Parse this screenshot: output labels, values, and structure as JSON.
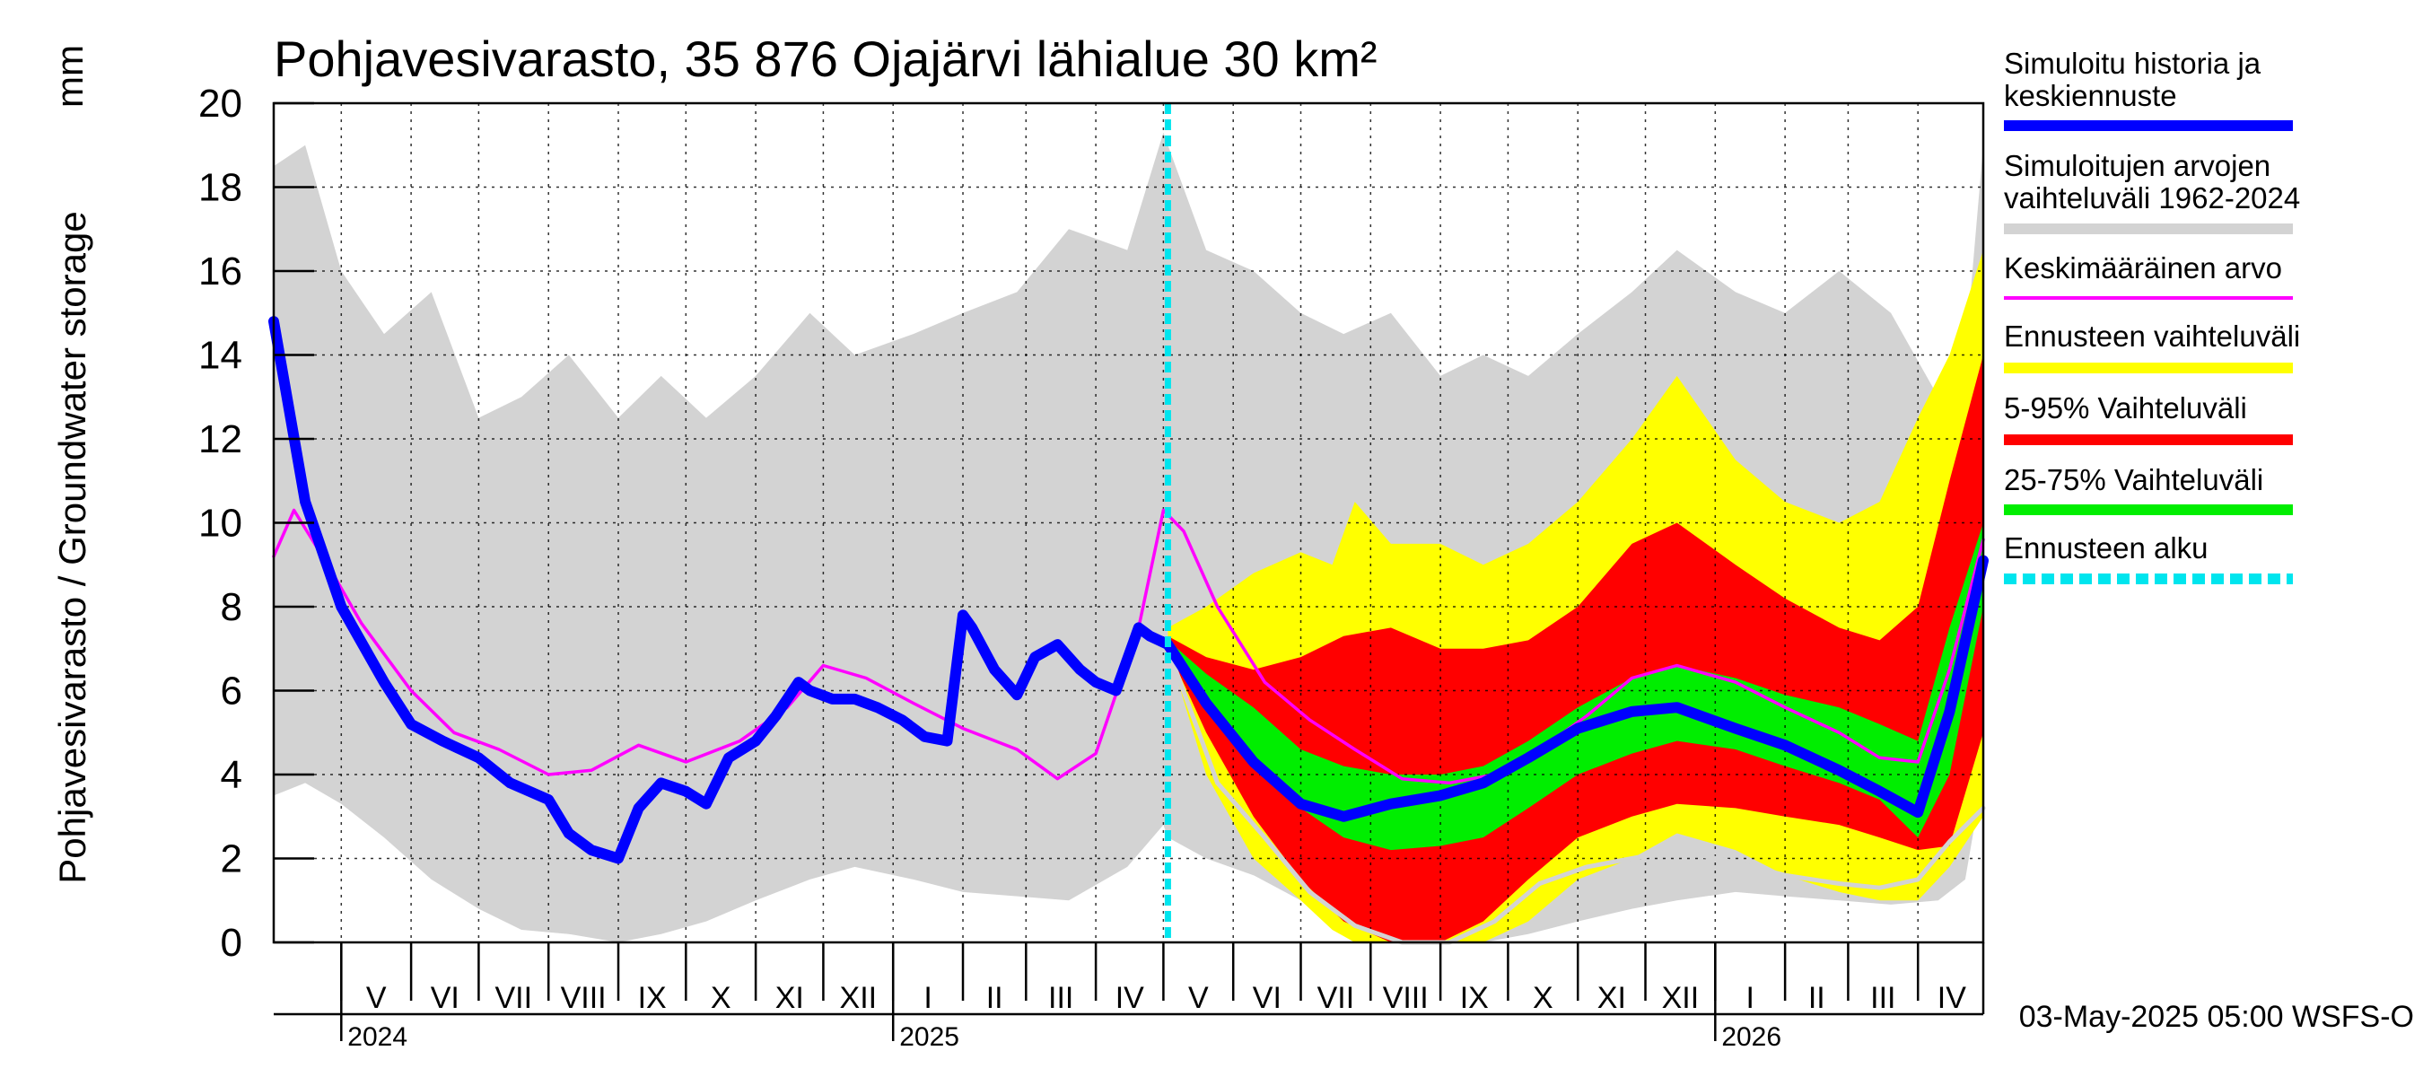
{
  "chart_data": {
    "type": "area",
    "title": "Pohjavesivarasto, 35 876 Ojajärvi lähialue 30 km²",
    "ylabel": "Pohjavesivarasto / Groundwater storage",
    "yunit": "mm",
    "ylim": [
      0,
      20
    ],
    "yticks": [
      0,
      2,
      4,
      6,
      8,
      10,
      12,
      14,
      16,
      18,
      20
    ],
    "xlim": [
      "2024-04-01",
      "2026-04-30"
    ],
    "months": [
      {
        "label": "V",
        "start": "2024-05-01",
        "end": "2024-06-01"
      },
      {
        "label": "VI",
        "start": "2024-06-01",
        "end": "2024-07-01"
      },
      {
        "label": "VII",
        "start": "2024-07-01",
        "end": "2024-08-01"
      },
      {
        "label": "VIII",
        "start": "2024-08-01",
        "end": "2024-09-01"
      },
      {
        "label": "IX",
        "start": "2024-09-01",
        "end": "2024-10-01"
      },
      {
        "label": "X",
        "start": "2024-10-01",
        "end": "2024-11-01"
      },
      {
        "label": "XI",
        "start": "2024-11-01",
        "end": "2024-12-01"
      },
      {
        "label": "XII",
        "start": "2024-12-01",
        "end": "2025-01-01"
      },
      {
        "label": "I",
        "start": "2025-01-01",
        "end": "2025-02-01"
      },
      {
        "label": "II",
        "start": "2025-02-01",
        "end": "2025-03-01"
      },
      {
        "label": "III",
        "start": "2025-03-01",
        "end": "2025-04-01"
      },
      {
        "label": "IV",
        "start": "2025-04-01",
        "end": "2025-05-01"
      },
      {
        "label": "V",
        "start": "2025-05-01",
        "end": "2025-06-01"
      },
      {
        "label": "VI",
        "start": "2025-06-01",
        "end": "2025-07-01"
      },
      {
        "label": "VII",
        "start": "2025-07-01",
        "end": "2025-08-01"
      },
      {
        "label": "VIII",
        "start": "2025-08-01",
        "end": "2025-09-01"
      },
      {
        "label": "IX",
        "start": "2025-09-01",
        "end": "2025-10-01"
      },
      {
        "label": "X",
        "start": "2025-10-01",
        "end": "2025-11-01"
      },
      {
        "label": "XI",
        "start": "2025-11-01",
        "end": "2025-12-01"
      },
      {
        "label": "XII",
        "start": "2025-12-01",
        "end": "2026-01-01"
      },
      {
        "label": "I",
        "start": "2026-01-01",
        "end": "2026-02-01"
      },
      {
        "label": "II",
        "start": "2026-02-01",
        "end": "2026-03-01"
      },
      {
        "label": "III",
        "start": "2026-03-01",
        "end": "2026-04-01"
      },
      {
        "label": "IV",
        "start": "2026-04-01",
        "end": "2026-05-01"
      }
    ],
    "years": [
      {
        "label": "2024",
        "date": "2024-05-01"
      },
      {
        "label": "2025",
        "date": "2025-01-01"
      },
      {
        "label": "2026",
        "date": "2026-01-01"
      }
    ],
    "forecast_start": "2025-05-03",
    "series": [
      {
        "name": "Simuloitujen arvojen vaihteluväli 1962-2024",
        "kind": "band",
        "color": "#d3d3d3",
        "x": [
          "2024-04-01",
          "2024-04-15",
          "2024-05-01",
          "2024-05-20",
          "2024-06-10",
          "2024-07-01",
          "2024-07-20",
          "2024-08-10",
          "2024-09-01",
          "2024-09-20",
          "2024-10-10",
          "2024-11-01",
          "2024-11-25",
          "2024-12-15",
          "2025-01-10",
          "2025-02-01",
          "2025-02-25",
          "2025-03-20",
          "2025-04-15",
          "2025-05-01",
          "2025-05-03",
          "2025-05-20",
          "2025-06-10",
          "2025-07-01",
          "2025-07-20",
          "2025-08-10",
          "2025-09-01",
          "2025-09-20",
          "2025-10-10",
          "2025-11-01",
          "2025-11-25",
          "2025-12-15",
          "2026-01-10",
          "2026-02-01",
          "2026-02-25",
          "2026-03-20",
          "2026-04-10",
          "2026-04-22",
          "2026-04-30"
        ],
        "upper": [
          18.5,
          19.0,
          16.0,
          14.5,
          15.5,
          12.5,
          13.0,
          14.0,
          12.5,
          13.5,
          12.5,
          13.5,
          15.0,
          14.0,
          14.5,
          15.0,
          15.5,
          17.0,
          16.5,
          19.3,
          19.0,
          16.5,
          16.0,
          15.0,
          14.5,
          15.0,
          13.5,
          14.0,
          13.5,
          14.5,
          15.5,
          16.5,
          15.5,
          15.0,
          16.0,
          15.0,
          13.0,
          14.0,
          19.0
        ],
        "lower": [
          3.5,
          3.8,
          3.3,
          2.5,
          1.5,
          0.8,
          0.3,
          0.2,
          0.0,
          0.2,
          0.5,
          1.0,
          1.5,
          1.8,
          1.5,
          1.2,
          1.1,
          1.0,
          1.8,
          2.8,
          2.5,
          2.0,
          1.6,
          1.0,
          0.5,
          0.2,
          0.0,
          0.0,
          0.2,
          0.5,
          0.8,
          1.0,
          1.2,
          1.1,
          1.0,
          0.9,
          1.0,
          1.5,
          4.0
        ]
      },
      {
        "name": "Ennusteen vaihteluväli",
        "kind": "band",
        "color": "#ffff00",
        "x": [
          "2025-05-03",
          "2025-05-20",
          "2025-06-10",
          "2025-07-01",
          "2025-07-15",
          "2025-07-25",
          "2025-08-10",
          "2025-09-01",
          "2025-09-20",
          "2025-10-10",
          "2025-11-01",
          "2025-11-25",
          "2025-12-15",
          "2026-01-10",
          "2026-02-01",
          "2026-02-25",
          "2026-03-15",
          "2026-04-01",
          "2026-04-15",
          "2026-04-30"
        ],
        "upper": [
          7.5,
          8.0,
          8.8,
          9.3,
          9.0,
          10.5,
          9.5,
          9.5,
          9.0,
          9.5,
          10.5,
          12.0,
          13.5,
          11.5,
          10.5,
          10.0,
          10.5,
          12.5,
          14.0,
          16.5
        ],
        "lower": [
          7.0,
          4.0,
          2.0,
          1.0,
          0.3,
          0.0,
          0.0,
          0.0,
          0.0,
          0.5,
          1.5,
          2.0,
          2.6,
          2.2,
          1.6,
          1.2,
          1.0,
          1.0,
          1.8,
          3.0
        ]
      },
      {
        "name": "5-95% Vaihteluväli",
        "kind": "band",
        "color": "#ff0000",
        "x": [
          "2025-05-03",
          "2025-05-20",
          "2025-06-10",
          "2025-07-01",
          "2025-07-20",
          "2025-08-10",
          "2025-09-01",
          "2025-09-20",
          "2025-10-10",
          "2025-11-01",
          "2025-11-25",
          "2025-12-15",
          "2026-01-10",
          "2026-02-01",
          "2026-02-25",
          "2026-03-15",
          "2026-04-01",
          "2026-04-15",
          "2026-04-30"
        ],
        "upper": [
          7.3,
          6.8,
          6.5,
          6.8,
          7.3,
          7.5,
          7.0,
          7.0,
          7.2,
          8.0,
          9.5,
          10.0,
          9.0,
          8.2,
          7.5,
          7.2,
          8.0,
          11.0,
          14.0
        ],
        "lower": [
          7.0,
          5.0,
          3.0,
          1.5,
          0.5,
          0.0,
          0.0,
          0.5,
          1.5,
          2.5,
          3.0,
          3.3,
          3.2,
          3.0,
          2.8,
          2.5,
          2.2,
          2.3,
          5.0
        ]
      },
      {
        "name": "25-75% Vaihteluväli",
        "kind": "band",
        "color": "#00ee00",
        "x": [
          "2025-05-03",
          "2025-05-20",
          "2025-06-10",
          "2025-07-01",
          "2025-07-20",
          "2025-08-10",
          "2025-09-01",
          "2025-09-20",
          "2025-10-10",
          "2025-11-01",
          "2025-11-25",
          "2025-12-15",
          "2026-01-10",
          "2026-02-01",
          "2026-02-25",
          "2026-03-15",
          "2026-04-01",
          "2026-04-15",
          "2026-04-30"
        ],
        "upper": [
          7.2,
          6.4,
          5.6,
          4.6,
          4.2,
          4.0,
          4.0,
          4.2,
          4.8,
          5.6,
          6.3,
          6.6,
          6.3,
          5.9,
          5.6,
          5.2,
          4.8,
          7.5,
          10.0
        ],
        "lower": [
          7.0,
          5.6,
          4.4,
          3.2,
          2.5,
          2.2,
          2.3,
          2.5,
          3.2,
          4.0,
          4.5,
          4.8,
          4.6,
          4.2,
          3.8,
          3.4,
          2.5,
          4.0,
          8.0
        ]
      },
      {
        "name": "Keskimääräinen arvo",
        "kind": "line",
        "color": "#ff00ff",
        "x": [
          "2024-04-01",
          "2024-04-10",
          "2024-04-25",
          "2024-05-10",
          "2024-06-01",
          "2024-06-20",
          "2024-07-10",
          "2024-08-01",
          "2024-08-20",
          "2024-09-10",
          "2024-10-01",
          "2024-10-25",
          "2024-11-15",
          "2024-12-01",
          "2024-12-20",
          "2025-01-10",
          "2025-02-01",
          "2025-02-25",
          "2025-03-15",
          "2025-04-01",
          "2025-04-20",
          "2025-05-01",
          "2025-05-10",
          "2025-05-25",
          "2025-06-15",
          "2025-07-05",
          "2025-07-25",
          "2025-08-15",
          "2025-09-05",
          "2025-09-25",
          "2025-10-15",
          "2025-11-05",
          "2025-11-25",
          "2025-12-15",
          "2026-01-10",
          "2026-02-01",
          "2026-02-25",
          "2026-03-15",
          "2026-04-01",
          "2026-04-15",
          "2026-04-30"
        ],
        "y": [
          9.2,
          10.3,
          9.0,
          7.6,
          6.0,
          5.0,
          4.6,
          4.0,
          4.1,
          4.7,
          4.3,
          4.8,
          5.6,
          6.6,
          6.3,
          5.7,
          5.1,
          4.6,
          3.9,
          4.5,
          7.5,
          10.3,
          9.8,
          8.0,
          6.2,
          5.3,
          4.6,
          3.9,
          3.8,
          4.0,
          4.6,
          5.4,
          6.3,
          6.6,
          6.2,
          5.6,
          5.0,
          4.4,
          4.3,
          6.5,
          9.6
        ]
      },
      {
        "name": "",
        "kind": "line",
        "color": "#d3d3d3",
        "x": [
          "2025-05-03",
          "2025-05-25",
          "2025-06-15",
          "2025-07-05",
          "2025-07-25",
          "2025-08-15",
          "2025-09-05",
          "2025-09-25",
          "2025-10-15",
          "2025-11-05",
          "2025-11-25",
          "2025-12-15",
          "2026-01-10",
          "2026-02-01",
          "2026-02-25",
          "2026-03-15",
          "2026-04-01",
          "2026-04-15",
          "2026-04-30"
        ],
        "y": [
          7.0,
          3.8,
          2.5,
          1.2,
          0.4,
          0.0,
          0.0,
          0.5,
          1.4,
          1.8,
          2.0,
          2.2,
          1.9,
          1.6,
          1.4,
          1.3,
          1.5,
          2.4,
          3.2
        ]
      },
      {
        "name": "Simuloitu historia ja keskiennuste",
        "kind": "line",
        "color": "#0000ff",
        "x": [
          "2024-04-01",
          "2024-04-15",
          "2024-05-01",
          "2024-05-20",
          "2024-06-01",
          "2024-06-15",
          "2024-07-01",
          "2024-07-15",
          "2024-08-01",
          "2024-08-10",
          "2024-08-20",
          "2024-09-01",
          "2024-09-10",
          "2024-09-20",
          "2024-10-01",
          "2024-10-10",
          "2024-10-20",
          "2024-11-01",
          "2024-11-10",
          "2024-11-20",
          "2024-11-25",
          "2024-12-05",
          "2024-12-15",
          "2024-12-25",
          "2025-01-05",
          "2025-01-15",
          "2025-01-25",
          "2025-02-01",
          "2025-02-05",
          "2025-02-15",
          "2025-02-25",
          "2025-03-05",
          "2025-03-15",
          "2025-03-25",
          "2025-04-01",
          "2025-04-10",
          "2025-04-20",
          "2025-04-25",
          "2025-05-03",
          "2025-05-20",
          "2025-06-10",
          "2025-07-01",
          "2025-07-20",
          "2025-08-10",
          "2025-09-01",
          "2025-09-20",
          "2025-10-10",
          "2025-11-01",
          "2025-11-25",
          "2025-12-15",
          "2026-01-10",
          "2026-02-01",
          "2026-02-25",
          "2026-03-15",
          "2026-04-01",
          "2026-04-15",
          "2026-04-30"
        ],
        "y": [
          14.8,
          10.5,
          8.0,
          6.2,
          5.2,
          4.8,
          4.4,
          3.8,
          3.4,
          2.6,
          2.2,
          2.0,
          3.2,
          3.8,
          3.6,
          3.3,
          4.4,
          4.8,
          5.4,
          6.2,
          6.0,
          5.8,
          5.8,
          5.6,
          5.3,
          4.9,
          4.8,
          7.8,
          7.5,
          6.5,
          5.9,
          6.8,
          7.1,
          6.5,
          6.2,
          6.0,
          7.5,
          7.3,
          7.1,
          5.7,
          4.3,
          3.3,
          3.0,
          3.3,
          3.5,
          3.8,
          4.4,
          5.1,
          5.5,
          5.6,
          5.1,
          4.7,
          4.1,
          3.6,
          3.1,
          5.5,
          9.1
        ]
      }
    ]
  },
  "legend": [
    {
      "label": "Simuloitu historia ja keskiennuste",
      "color": "#0000ff",
      "style": "solid"
    },
    {
      "label": "Simuloitujen arvojen vaihteluväli 1962-2024",
      "color": "#d3d3d3",
      "style": "solid"
    },
    {
      "label": "Keskimääräinen arvo",
      "color": "#ff00ff",
      "style": "thin"
    },
    {
      "label": "Ennusteen vaihteluväli",
      "color": "#ffff00",
      "style": "solid"
    },
    {
      "label": "5-95% Vaihteluväli",
      "color": "#ff0000",
      "style": "solid"
    },
    {
      "label": "25-75% Vaihteluväli",
      "color": "#00ee00",
      "style": "solid"
    },
    {
      "label": "Ennusteen alku",
      "color": "#00e5ee",
      "style": "dashed"
    }
  ],
  "footer": "03-May-2025 05:00 WSFS-O"
}
